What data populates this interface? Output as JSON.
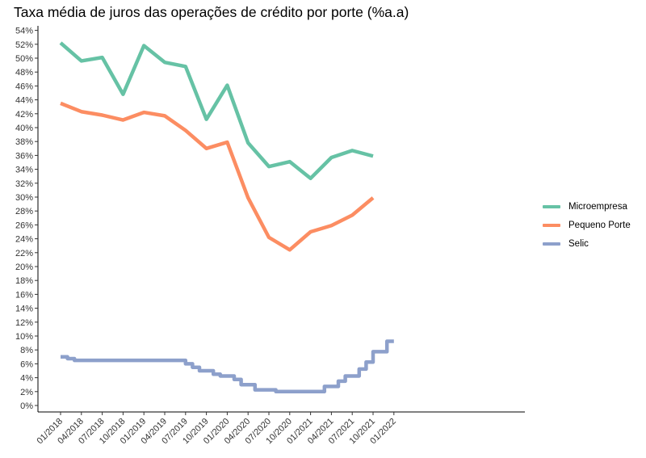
{
  "chart_data": {
    "type": "line",
    "title": "Taxa média de juros das operações de crédito por porte (%a.a)",
    "xlabel": "",
    "ylabel": "",
    "y_ticks": [
      "0%",
      "2%",
      "4%",
      "6%",
      "8%",
      "10%",
      "12%",
      "14%",
      "16%",
      "18%",
      "20%",
      "22%",
      "24%",
      "26%",
      "28%",
      "30%",
      "32%",
      "34%",
      "36%",
      "38%",
      "40%",
      "42%",
      "44%",
      "46%",
      "48%",
      "50%",
      "52%",
      "54%"
    ],
    "x_ticks": [
      "01/2018",
      "04/2018",
      "07/2018",
      "10/2018",
      "01/2019",
      "04/2019",
      "07/2019",
      "10/2019",
      "01/2020",
      "04/2020",
      "07/2020",
      "10/2020",
      "01/2021",
      "04/2021",
      "07/2021",
      "10/2021",
      "01/2022"
    ],
    "ylim": [
      0,
      54
    ],
    "grid": false,
    "legend_position": "right",
    "series": [
      {
        "name": "Microempresa",
        "color": "#66C2A5",
        "step": false,
        "points": [
          [
            "01/2018",
            52.2
          ],
          [
            "04/2018",
            49.6
          ],
          [
            "07/2018",
            50.1
          ],
          [
            "10/2018",
            44.8
          ],
          [
            "01/2019",
            51.8
          ],
          [
            "04/2019",
            49.4
          ],
          [
            "07/2019",
            48.8
          ],
          [
            "10/2019",
            41.2
          ],
          [
            "01/2020",
            46.1
          ],
          [
            "04/2020",
            37.8
          ],
          [
            "07/2020",
            34.4
          ],
          [
            "10/2020",
            35.1
          ],
          [
            "01/2021",
            32.7
          ],
          [
            "04/2021",
            35.7
          ],
          [
            "07/2021",
            36.7
          ],
          [
            "10/2021",
            35.9
          ]
        ]
      },
      {
        "name": "Pequeno Porte",
        "color": "#FC8D62",
        "step": false,
        "points": [
          [
            "01/2018",
            43.5
          ],
          [
            "04/2018",
            42.3
          ],
          [
            "07/2018",
            41.8
          ],
          [
            "10/2018",
            41.1
          ],
          [
            "01/2019",
            42.2
          ],
          [
            "04/2019",
            41.7
          ],
          [
            "07/2019",
            39.6
          ],
          [
            "10/2019",
            37.0
          ],
          [
            "01/2020",
            37.9
          ],
          [
            "04/2020",
            29.9
          ],
          [
            "07/2020",
            24.2
          ],
          [
            "10/2020",
            22.4
          ],
          [
            "01/2021",
            25.0
          ],
          [
            "04/2021",
            25.9
          ],
          [
            "07/2021",
            27.4
          ],
          [
            "10/2021",
            29.9
          ]
        ]
      },
      {
        "name": "Selic",
        "color": "#8DA0CB",
        "step": true,
        "points": [
          [
            "01/2018",
            7.0
          ],
          [
            "02/2018",
            6.75
          ],
          [
            "03/2018",
            6.5
          ],
          [
            "07/2019",
            6.0
          ],
          [
            "08/2019",
            5.5
          ],
          [
            "09/2019",
            5.0
          ],
          [
            "11/2019",
            4.5
          ],
          [
            "12/2019",
            4.25
          ],
          [
            "02/2020",
            3.75
          ],
          [
            "03/2020",
            3.0
          ],
          [
            "05/2020",
            2.25
          ],
          [
            "08/2020",
            2.0
          ],
          [
            "03/2021",
            2.75
          ],
          [
            "05/2021",
            3.5
          ],
          [
            "06/2021",
            4.25
          ],
          [
            "08/2021",
            5.25
          ],
          [
            "09/2021",
            6.25
          ],
          [
            "10/2021",
            7.75
          ],
          [
            "12/2021",
            9.25
          ],
          [
            "01/2022",
            9.25
          ]
        ]
      }
    ]
  }
}
